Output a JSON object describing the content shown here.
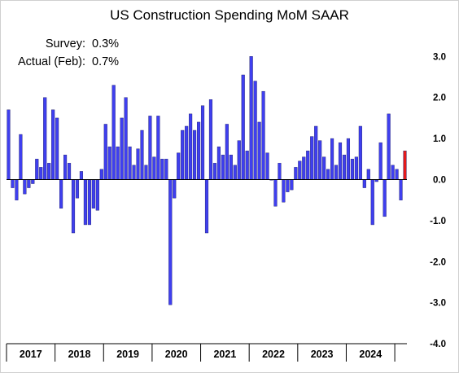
{
  "chart_data": {
    "type": "bar",
    "title": "US Construction Spending MoM SAAR",
    "annotations": [
      {
        "label": "Survey:",
        "value": "0.3%"
      },
      {
        "label": "Actual (Feb):",
        "value": "0.7%"
      }
    ],
    "ylim": [
      -4.0,
      3.3
    ],
    "yticks": [
      3.0,
      2.0,
      1.0,
      0.0,
      -1.0,
      -2.0,
      -3.0,
      -4.0
    ],
    "ytick_labels": [
      "3.0",
      "2.0",
      "1.0",
      "0.0",
      "-1.0",
      "-2.0",
      "-3.0",
      "-4.0"
    ],
    "year_labels": [
      "2017",
      "2018",
      "2019",
      "2020",
      "2021",
      "2022",
      "2023",
      "2024"
    ],
    "months_per_year": 12,
    "series_color": "#3F3FEF",
    "highlight_color": "#E41A1A",
    "highlight_last": true,
    "values": [
      1.7,
      -0.2,
      -0.5,
      1.1,
      -0.35,
      -0.2,
      -0.1,
      0.5,
      0.3,
      2.0,
      0.4,
      1.7,
      1.5,
      -0.7,
      0.6,
      0.4,
      -1.3,
      -0.45,
      0.2,
      -1.1,
      -1.1,
      -0.7,
      -0.75,
      0.25,
      1.35,
      0.8,
      2.3,
      0.8,
      1.5,
      2.0,
      0.8,
      0.35,
      0.75,
      1.2,
      0.35,
      1.55,
      0.55,
      1.55,
      0.5,
      0.5,
      -3.05,
      -0.45,
      0.65,
      1.2,
      1.3,
      1.6,
      1.2,
      1.4,
      1.8,
      -1.3,
      1.95,
      0.4,
      0.8,
      0.6,
      1.35,
      0.6,
      0.35,
      0.95,
      2.55,
      0.7,
      3.0,
      2.4,
      1.4,
      2.15,
      0.65,
      0.0,
      -0.65,
      0.4,
      -0.55,
      -0.3,
      -0.25,
      0.3,
      0.45,
      0.55,
      0.7,
      1.05,
      1.3,
      0.95,
      0.55,
      0.25,
      1.0,
      0.35,
      0.9,
      0.6,
      1.0,
      0.5,
      0.55,
      1.3,
      -0.2,
      0.25,
      -1.1,
      -0.05,
      0.9,
      -0.9,
      1.6,
      0.35,
      0.25,
      -0.5,
      0.7
    ]
  }
}
